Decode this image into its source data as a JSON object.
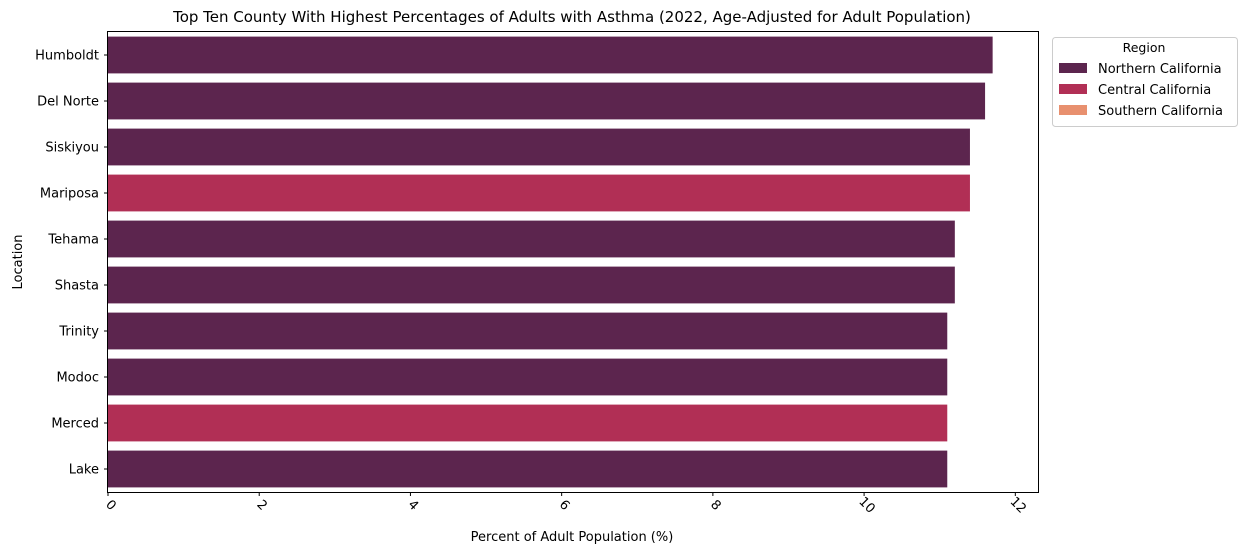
{
  "chart_data": {
    "type": "bar",
    "orientation": "horizontal",
    "title": "Top Ten County With Highest Percentages of Adults with Asthma (2022, Age-Adjusted for Adult Population)",
    "xlabel": "Percent of Adult Population (%)",
    "ylabel": "Location",
    "xlim": [
      0,
      12.3
    ],
    "xticks": [
      0,
      2,
      4,
      6,
      8,
      10,
      12
    ],
    "xtick_rotation_deg": 45,
    "grid": false,
    "categories": [
      "Humboldt",
      "Del Norte",
      "Siskiyou",
      "Mariposa",
      "Tehama",
      "Shasta",
      "Trinity",
      "Modoc",
      "Merced",
      "Lake"
    ],
    "values": [
      11.7,
      11.6,
      11.4,
      11.4,
      11.2,
      11.2,
      11.1,
      11.1,
      11.1,
      11.1
    ],
    "regions": [
      "Northern California",
      "Northern California",
      "Northern California",
      "Central California",
      "Northern California",
      "Northern California",
      "Northern California",
      "Northern California",
      "Central California",
      "Northern California"
    ],
    "legend": {
      "title": "Region",
      "placement": "outside-top-right",
      "entries": [
        {
          "name": "Northern California",
          "color": "#5c254e"
        },
        {
          "name": "Central California",
          "color": "#b12f55"
        },
        {
          "name": "Southern California",
          "color": "#e8906f"
        }
      ]
    }
  }
}
